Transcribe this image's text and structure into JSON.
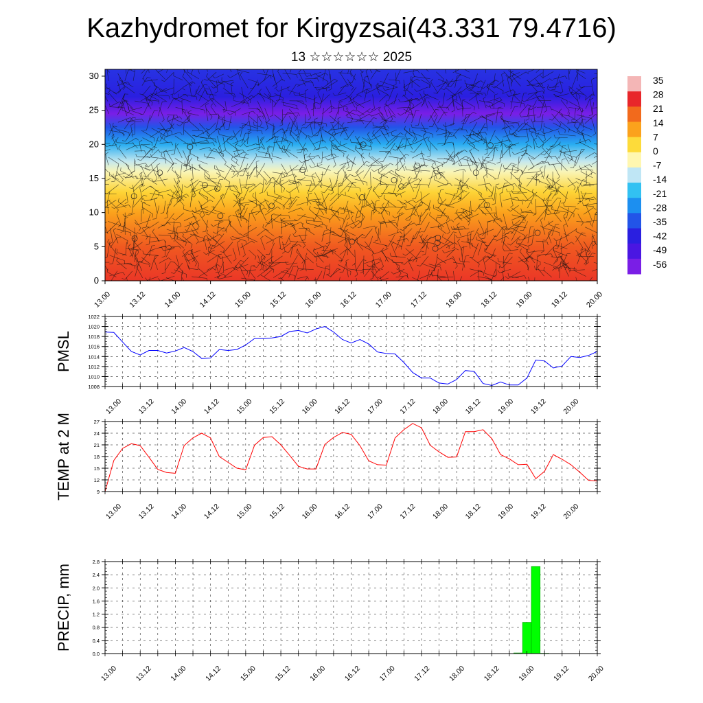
{
  "title": "Kazhydromet for Kirgyzsai(43.331 79.4716)",
  "subtitle": "13 ☆☆☆☆☆☆ 2025",
  "x_tick_labels": [
    "13.00",
    "13.12",
    "14.00",
    "14.12",
    "15.00",
    "15.12",
    "16.00",
    "16.12",
    "17.00",
    "17.12",
    "18.00",
    "18.12",
    "19.00",
    "19.12",
    "20.00"
  ],
  "chart_data": [
    {
      "type": "heatmap",
      "name": "temperature-cross-section",
      "description_overlay": "wind barbs",
      "x_range": [
        0,
        56
      ],
      "ylim": [
        0,
        31
      ],
      "y_ticks": [
        0,
        5,
        10,
        15,
        20,
        25,
        30
      ],
      "colorbar": {
        "labels": [
          "35",
          "28",
          "21",
          "14",
          "7",
          "0",
          "-7",
          "-14",
          "-21",
          "-28",
          "-35",
          "-42",
          "-49",
          "-56"
        ],
        "colors": [
          "#f4b6b6",
          "#e8262a",
          "#f26a1c",
          "#fba21c",
          "#fddb3a",
          "#fff7b0",
          "#bfe6f5",
          "#32c1f2",
          "#1c8ff0",
          "#2254e8",
          "#2a1fe0",
          "#4a16e2",
          "#7a1ee6"
        ]
      },
      "profile_levels": [
        0,
        5,
        10,
        13,
        16,
        17.5,
        20,
        22.5,
        24.5,
        27,
        31
      ],
      "profile_values": [
        26,
        22,
        12,
        5,
        -5,
        -13,
        -28,
        -42,
        -56,
        -50,
        -47
      ]
    },
    {
      "type": "line",
      "ylabel": "PMSL",
      "ylim": [
        1008,
        1022
      ],
      "y_ticks": [
        1008,
        1010,
        1012,
        1014,
        1016,
        1018,
        1020,
        1022
      ],
      "x_interval_hours": 3,
      "color": "#0000ff",
      "values": [
        1018.9,
        1018.8,
        1016.9,
        1015.0,
        1014.3,
        1015.2,
        1015.2,
        1014.7,
        1015.1,
        1015.8,
        1015.0,
        1013.6,
        1013.7,
        1015.4,
        1015.2,
        1015.4,
        1016.3,
        1017.6,
        1017.6,
        1017.7,
        1018.0,
        1019.0,
        1019.2,
        1018.7,
        1019.5,
        1020.0,
        1018.9,
        1017.4,
        1016.7,
        1017.4,
        1016.5,
        1014.9,
        1014.6,
        1014.5,
        1012.8,
        1010.8,
        1009.7,
        1009.7,
        1008.7,
        1008.5,
        1009.4,
        1011.2,
        1011.0,
        1008.6,
        1008.2,
        1008.9,
        1008.3,
        1008.3,
        1009.7,
        1013.3,
        1013.1,
        1011.7,
        1012.1,
        1014.0,
        1013.8,
        1014.2,
        1015.0
      ]
    },
    {
      "type": "line",
      "ylabel": "TEMP at 2 M",
      "ylim": [
        9,
        27
      ],
      "y_ticks": [
        9,
        12,
        15,
        18,
        21,
        24,
        27
      ],
      "x_interval_hours": 3,
      "color": "#ff0000",
      "values": [
        9.0,
        17.0,
        20.1,
        21.3,
        20.8,
        17.8,
        14.7,
        13.9,
        13.7,
        20.8,
        22.8,
        24.0,
        22.8,
        18.0,
        16.5,
        15.0,
        14.6,
        20.9,
        22.9,
        23.1,
        21.0,
        18.3,
        15.5,
        14.8,
        14.8,
        21.1,
        22.9,
        24.2,
        23.7,
        20.8,
        16.9,
        15.9,
        15.8,
        22.8,
        24.9,
        26.5,
        25.4,
        20.9,
        19.2,
        17.8,
        17.9,
        24.4,
        24.4,
        24.9,
        22.6,
        18.5,
        17.4,
        15.9,
        16.0,
        12.3,
        14.2,
        18.5,
        17.3,
        15.9,
        14.0,
        11.9,
        11.7
      ]
    },
    {
      "type": "bar",
      "ylabel": "PRECIP, mm",
      "ylim": [
        0,
        2.8
      ],
      "y_ticks": [
        "0.0",
        "0.4",
        "0.8",
        "1.2",
        "1.6",
        "2.0",
        "2.4",
        "2.8"
      ],
      "x_interval_hours": 3,
      "color": "#00ff00",
      "values": [
        0,
        0,
        0,
        0,
        0,
        0,
        0,
        0,
        0,
        0,
        0,
        0,
        0,
        0,
        0,
        0,
        0,
        0,
        0,
        0,
        0,
        0,
        0,
        0,
        0,
        0,
        0,
        0,
        0,
        0,
        0,
        0,
        0,
        0,
        0,
        0,
        0,
        0,
        0,
        0,
        0,
        0,
        0,
        0,
        0,
        0,
        0,
        0.02,
        0.95,
        2.65,
        0.01,
        0,
        0,
        0,
        0,
        0,
        0
      ]
    }
  ]
}
